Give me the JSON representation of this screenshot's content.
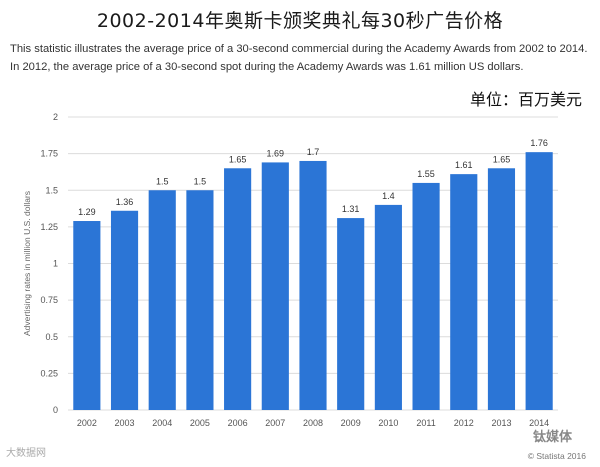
{
  "header": {
    "title": "2002-2014年奥斯卡颁奖典礼每30秒广告价格",
    "description": "This statistic illustrates the average price of a 30-second commercial during the Academy Awards from 2002 to 2014. In 2012, the average price of a 30-second spot during the Academy Awards was 1.61 million US dollars.",
    "unit": "单位：百万美元"
  },
  "footer": {
    "watermark": "大数据网",
    "brand": "钛媒体",
    "source": "© Statista 2016"
  },
  "colors": {
    "bar": "#2b75d6",
    "grid": "#dcdcdc"
  },
  "chart_data": {
    "type": "bar",
    "ylabel": "Advertising rates in million U.S. dollars",
    "ylim": [
      0,
      2
    ],
    "yticks": [
      "0",
      "0.25",
      "0.5",
      "0.75",
      "1",
      "1.25",
      "1.5",
      "1.75",
      "2"
    ],
    "grid": true,
    "categories": [
      "2002",
      "2003",
      "2004",
      "2005",
      "2006",
      "2007",
      "2008",
      "2009",
      "2010",
      "2011",
      "2012",
      "2013",
      "2014"
    ],
    "values": [
      1.29,
      1.36,
      1.5,
      1.5,
      1.65,
      1.69,
      1.7,
      1.31,
      1.4,
      1.55,
      1.61,
      1.65,
      1.76
    ],
    "data_labels": [
      "1.29",
      "1.36",
      "1.5",
      "1.5",
      "1.65",
      "1.69",
      "1.7",
      "1.31",
      "1.4",
      "1.55",
      "1.61",
      "1.65",
      "1.76"
    ]
  }
}
